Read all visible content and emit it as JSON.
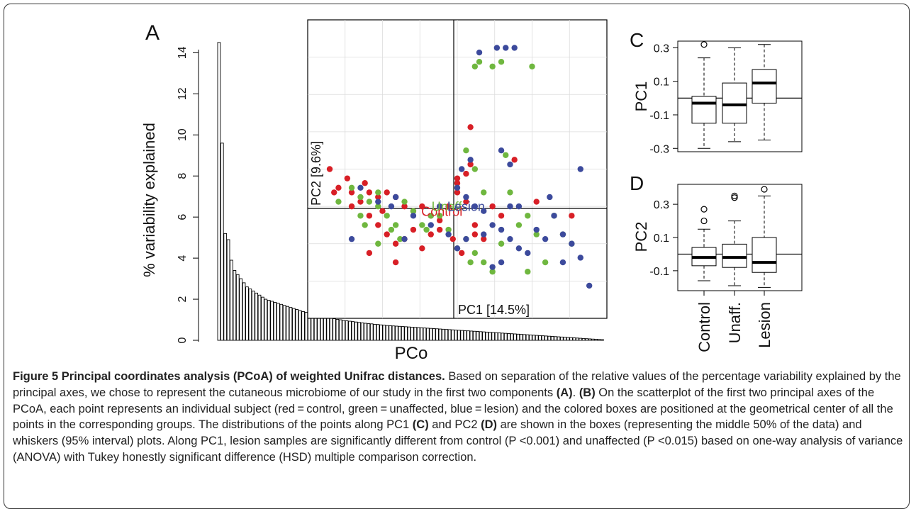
{
  "chart_data": [
    {
      "panel": "A",
      "type": "bar",
      "ylabel": "% variability explained",
      "xlabel": "PCo",
      "ylim": [
        0,
        14.6
      ],
      "yticks": [
        "0",
        "2",
        "4",
        "6",
        "8",
        "10",
        "12",
        "14"
      ],
      "values": [
        14.5,
        9.6,
        5.2,
        4.9,
        3.9,
        3.4,
        3.2,
        3.0,
        2.8,
        2.6,
        2.5,
        2.4,
        2.3,
        2.2,
        2.1,
        2.0,
        1.95,
        1.9,
        1.85,
        1.8,
        1.75,
        1.7,
        1.65,
        1.6,
        1.55,
        1.5,
        1.45,
        1.4,
        1.36,
        1.32,
        1.28,
        1.24,
        1.2,
        1.17,
        1.14,
        1.11,
        1.08,
        1.05,
        1.02,
        1.0,
        0.97,
        0.95,
        0.93,
        0.91,
        0.89,
        0.87,
        0.85,
        0.83,
        0.81,
        0.8,
        0.78,
        0.77,
        0.75,
        0.74,
        0.72,
        0.71,
        0.7,
        0.69,
        0.68,
        0.67,
        0.66,
        0.65,
        0.64,
        0.63,
        0.62,
        0.61,
        0.6,
        0.59,
        0.58,
        0.57,
        0.56,
        0.55,
        0.54,
        0.53,
        0.52,
        0.51,
        0.5,
        0.49,
        0.48,
        0.47,
        0.46,
        0.45,
        0.44,
        0.43,
        0.42,
        0.41,
        0.4,
        0.39,
        0.38,
        0.37,
        0.36,
        0.35,
        0.34,
        0.33,
        0.32,
        0.31,
        0.3,
        0.29,
        0.28,
        0.27,
        0.26,
        0.25,
        0.24,
        0.23,
        0.22,
        0.21,
        0.2,
        0.19,
        0.18,
        0.17,
        0.16,
        0.15,
        0.14,
        0.13,
        0.12,
        0.11,
        0.1,
        0.09,
        0.08,
        0.07,
        0.06,
        0.05,
        0.04,
        0.03
      ]
    },
    {
      "panel": "B",
      "type": "scatter",
      "xlabel": "PC1 [14.5%]",
      "ylabel": "PC2 [9.6%]",
      "xlim": [
        -0.32,
        0.36
      ],
      "ylim": [
        -0.22,
        0.42
      ],
      "centroid_labels": [
        {
          "text": "Control",
          "x": -0.015,
          "y": 0.0,
          "color": "#d81f26"
        },
        {
          "text": "Unaff.",
          "x": 0.0,
          "y": 0.01,
          "color": "#6fb73f"
        },
        {
          "text": "Lesion",
          "x": 0.04,
          "y": 0.01,
          "color": "#3c4a9c"
        }
      ],
      "series": [
        {
          "name": "Control",
          "color": "#d81f26",
          "points": [
            [
              -0.27,
              0.1
            ],
            [
              -0.25,
              0.06
            ],
            [
              -0.22,
              0.05
            ],
            [
              -0.2,
              0.03
            ],
            [
              -0.18,
              0.05
            ],
            [
              -0.16,
              0.04
            ],
            [
              -0.14,
              0.05
            ],
            [
              -0.12,
              0.04
            ],
            [
              -0.1,
              0.02
            ],
            [
              -0.08,
              0.01
            ],
            [
              -0.06,
              0.02
            ],
            [
              -0.04,
              0.0
            ],
            [
              -0.02,
              -0.01
            ],
            [
              0.0,
              0.02
            ],
            [
              0.02,
              0.05
            ],
            [
              0.04,
              0.03
            ],
            [
              0.06,
              -0.02
            ],
            [
              0.08,
              -0.05
            ],
            [
              0.1,
              0.02
            ],
            [
              -0.22,
              0.02
            ],
            [
              -0.18,
              0.0
            ],
            [
              -0.16,
              -0.02
            ],
            [
              -0.14,
              -0.04
            ],
            [
              -0.12,
              -0.06
            ],
            [
              -0.1,
              -0.05
            ],
            [
              -0.08,
              -0.03
            ],
            [
              -0.06,
              -0.07
            ],
            [
              -0.04,
              -0.04
            ],
            [
              -0.02,
              -0.03
            ],
            [
              0.01,
              -0.05
            ],
            [
              0.03,
              -0.08
            ],
            [
              0.05,
              0.11
            ],
            [
              0.02,
              0.07
            ],
            [
              0.05,
              0.19
            ],
            [
              0.04,
              0.09
            ],
            [
              0.02,
              0.08
            ],
            [
              -0.18,
              -0.08
            ],
            [
              -0.12,
              -0.1
            ],
            [
              0.06,
              -0.04
            ],
            [
              0.28,
              -0.0
            ],
            [
              0.2,
              0.03
            ],
            [
              0.12,
              0.0
            ],
            [
              -0.23,
              0.08
            ],
            [
              -0.19,
              0.07
            ],
            [
              0.15,
              0.12
            ],
            [
              -0.15,
              0.01
            ],
            [
              -0.26,
              0.05
            ]
          ]
        },
        {
          "name": "Unaffected",
          "color": "#6fb73f",
          "points": [
            [
              -0.22,
              0.06
            ],
            [
              -0.2,
              0.04
            ],
            [
              -0.18,
              0.03
            ],
            [
              -0.16,
              0.02
            ],
            [
              -0.14,
              0.0
            ],
            [
              -0.12,
              -0.02
            ],
            [
              -0.1,
              0.03
            ],
            [
              -0.08,
              0.01
            ],
            [
              -0.06,
              -0.02
            ],
            [
              -0.04,
              -0.0
            ],
            [
              -0.02,
              0.0
            ],
            [
              0.0,
              -0.03
            ],
            [
              0.02,
              -0.07
            ],
            [
              0.04,
              -0.05
            ],
            [
              0.06,
              -0.08
            ],
            [
              0.08,
              -0.1
            ],
            [
              0.1,
              -0.12
            ],
            [
              0.12,
              -0.06
            ],
            [
              0.14,
              0.05
            ],
            [
              0.16,
              -0.02
            ],
            [
              0.18,
              0.0
            ],
            [
              0.2,
              -0.04
            ],
            [
              0.22,
              -0.1
            ],
            [
              0.24,
              0.0
            ],
            [
              0.26,
              -0.04
            ],
            [
              0.28,
              -0.06
            ],
            [
              -0.16,
              0.05
            ],
            [
              -0.13,
              -0.03
            ],
            [
              -0.19,
              -0.02
            ],
            [
              -0.11,
              -0.05
            ],
            [
              0.04,
              0.14
            ],
            [
              0.08,
              0.05
            ],
            [
              0.07,
              0.33
            ],
            [
              0.06,
              0.32
            ],
            [
              0.1,
              0.32
            ],
            [
              0.12,
              0.33
            ],
            [
              0.19,
              0.32
            ],
            [
              0.13,
              0.13
            ],
            [
              0.06,
              0.1
            ],
            [
              -0.05,
              -0.03
            ],
            [
              -0.25,
              0.03
            ],
            [
              0.05,
              -0.1
            ],
            [
              0.18,
              -0.12
            ],
            [
              -0.2,
              0.0
            ],
            [
              -0.16,
              -0.06
            ]
          ]
        },
        {
          "name": "Lesion",
          "color": "#3c4a9c",
          "points": [
            [
              0.07,
              0.35
            ],
            [
              0.11,
              0.36
            ],
            [
              0.13,
              0.36
            ],
            [
              0.15,
              0.36
            ],
            [
              0.12,
              0.14
            ],
            [
              0.14,
              0.11
            ],
            [
              0.05,
              0.12
            ],
            [
              0.03,
              0.1
            ],
            [
              0.02,
              0.06
            ],
            [
              0.04,
              0.04
            ],
            [
              0.06,
              0.02
            ],
            [
              0.08,
              0.01
            ],
            [
              0.1,
              -0.02
            ],
            [
              0.12,
              -0.03
            ],
            [
              0.14,
              -0.05
            ],
            [
              0.16,
              -0.07
            ],
            [
              0.18,
              -0.08
            ],
            [
              0.2,
              -0.03
            ],
            [
              0.22,
              -0.05
            ],
            [
              0.24,
              0.0
            ],
            [
              0.26,
              -0.04
            ],
            [
              0.28,
              -0.06
            ],
            [
              0.3,
              -0.09
            ],
            [
              0.32,
              -0.15
            ],
            [
              0.3,
              0.1
            ],
            [
              -0.2,
              0.06
            ],
            [
              -0.16,
              0.03
            ],
            [
              -0.12,
              0.04
            ],
            [
              -0.08,
              0.0
            ],
            [
              -0.04,
              -0.02
            ],
            [
              0.0,
              -0.04
            ],
            [
              0.02,
              -0.07
            ],
            [
              0.04,
              -0.05
            ],
            [
              -0.1,
              -0.05
            ],
            [
              -0.13,
              0.02
            ],
            [
              -0.22,
              -0.05
            ],
            [
              -0.02,
              0.02
            ],
            [
              0.12,
              -0.1
            ],
            [
              0.1,
              -0.11
            ],
            [
              0.08,
              -0.04
            ],
            [
              0.14,
              0.02
            ],
            [
              0.16,
              0.02
            ],
            [
              0.23,
              0.04
            ],
            [
              0.26,
              -0.1
            ]
          ]
        }
      ]
    },
    {
      "panel": "C",
      "type": "box",
      "ylabel": "PC1",
      "ylim": [
        -0.32,
        0.34
      ],
      "yticks": [
        "-0.3",
        "-0.1",
        "0.1",
        "0.3"
      ],
      "categories": [
        "Control",
        "Unaff.",
        "Lesion"
      ],
      "boxes": [
        {
          "min": -0.3,
          "q1": -0.15,
          "median": -0.03,
          "q3": 0.01,
          "max": 0.24,
          "outliers": [
            0.32
          ]
        },
        {
          "min": -0.26,
          "q1": -0.15,
          "median": -0.04,
          "q3": 0.09,
          "max": 0.3,
          "outliers": []
        },
        {
          "min": -0.25,
          "q1": -0.03,
          "median": 0.09,
          "q3": 0.17,
          "max": 0.32,
          "outliers": []
        }
      ]
    },
    {
      "panel": "D",
      "type": "box",
      "ylabel": "PC2",
      "ylim": [
        -0.22,
        0.42
      ],
      "yticks": [
        "-0.1",
        "0.1",
        "0.3"
      ],
      "categories": [
        "Control",
        "Unaff.",
        "Lesion"
      ],
      "boxes": [
        {
          "min": -0.16,
          "q1": -0.07,
          "median": -0.02,
          "q3": 0.04,
          "max": 0.15,
          "outliers": [
            0.2,
            0.27
          ]
        },
        {
          "min": -0.19,
          "q1": -0.08,
          "median": -0.02,
          "q3": 0.06,
          "max": 0.2,
          "outliers": [
            0.34,
            0.35
          ]
        },
        {
          "min": -0.2,
          "q1": -0.11,
          "median": -0.05,
          "q3": 0.1,
          "max": 0.35,
          "outliers": [
            0.39
          ]
        }
      ]
    }
  ],
  "caption": {
    "title": "Figure 5 Principal coordinates analysis (PCoA) of weighted Unifrac distances.",
    "s1": " Based on separation of the relative values of the percentage variability explained by the principal axes, we chose to represent the cutaneous microbiome of our study in the first two components ",
    "refA": "(A)",
    "s2": ". ",
    "refB": "(B)",
    "s3": " On the scatterplot of the first two principal axes of the PCoA, each point represents an individual subject (red = control, green = unaffected, blue = lesion) and the colored boxes are positioned at the geometrical center of all the points in the corresponding groups. The distributions of the points along PC1 ",
    "refC": "(C)",
    "s4": " and PC2 ",
    "refD": "(D)",
    "s5": " are shown in the boxes (representing the middle 50% of the data) and whiskers (95% interval) plots. Along PC1, lesion samples are significantly different from control (P <0.001) and unaffected (P <0.015) based on one-way analysis of variance (ANOVA) with Tukey honestly significant difference (HSD) multiple comparison correction."
  }
}
